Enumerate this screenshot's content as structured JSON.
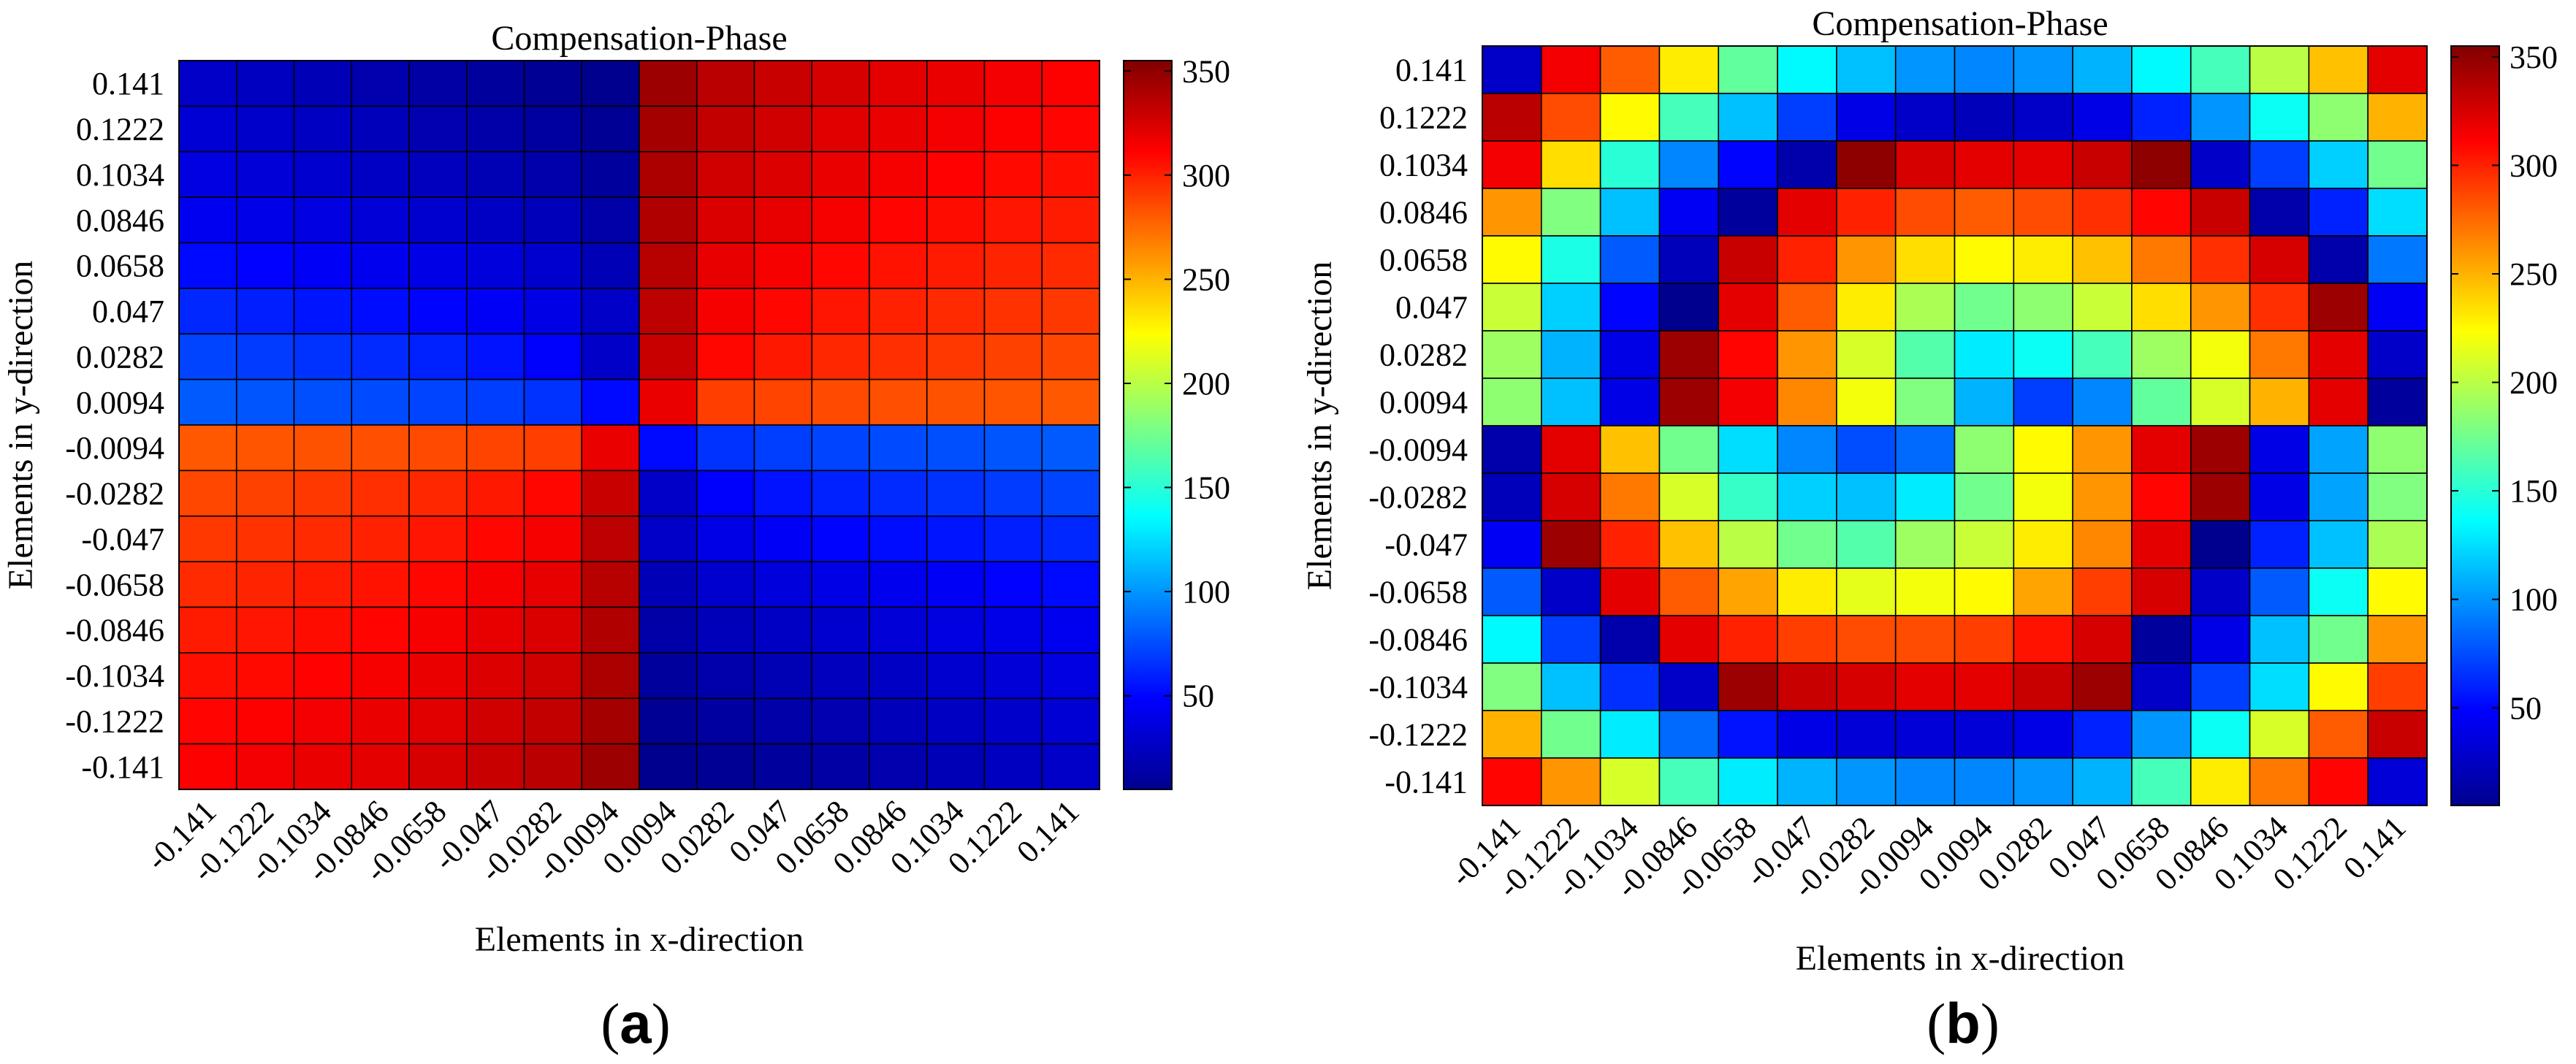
{
  "panels": [
    {
      "label": "(a)",
      "label_letter": "a"
    },
    {
      "label": "(b)",
      "label_letter": "b"
    }
  ],
  "chart_data": [
    {
      "type": "heatmap",
      "panel": "(a)",
      "title": "Compensation-Phase",
      "xlabel": "Elements in x-direction",
      "ylabel": "Elements in y-direction",
      "x_ticks": [
        "-0.141",
        "-0.1222",
        "-0.1034",
        "-0.0846",
        "-0.0658",
        "-0.047",
        "-0.0282",
        "-0.0094",
        "0.0094",
        "0.0282",
        "0.047",
        "0.0658",
        "0.0846",
        "0.1034",
        "0.1222",
        "0.141"
      ],
      "y_ticks": [
        "0.141",
        "0.1222",
        "0.1034",
        "0.0846",
        "0.0658",
        "0.047",
        "0.0282",
        "0.0094",
        "-0.0094",
        "-0.0282",
        "-0.047",
        "-0.0658",
        "-0.0846",
        "-0.1034",
        "-0.1222",
        "-0.141"
      ],
      "colorbar": {
        "min": 5,
        "max": 355,
        "ticks": [
          50,
          100,
          150,
          200,
          250,
          300,
          350
        ],
        "colormap": "jet"
      },
      "values": [
        [
          30,
          27,
          24,
          21,
          18,
          15,
          12,
          10,
          345,
          335,
          330,
          325,
          320,
          318,
          315,
          312
        ],
        [
          34,
          31,
          28,
          25,
          22,
          19,
          16,
          12,
          342,
          332,
          327,
          322,
          318,
          315,
          312,
          310
        ],
        [
          38,
          35,
          32,
          29,
          26,
          23,
          20,
          15,
          340,
          328,
          323,
          318,
          314,
          311,
          308,
          306
        ],
        [
          44,
          41,
          38,
          35,
          32,
          29,
          25,
          19,
          338,
          324,
          319,
          314,
          310,
          307,
          304,
          302
        ],
        [
          52,
          49,
          46,
          43,
          40,
          37,
          32,
          24,
          336,
          319,
          314,
          309,
          305,
          302,
          299,
          297
        ],
        [
          62,
          59,
          56,
          53,
          50,
          46,
          40,
          30,
          334,
          314,
          309,
          304,
          300,
          297,
          294,
          292
        ],
        [
          72,
          69,
          66,
          63,
          60,
          55,
          48,
          30,
          330,
          309,
          303,
          298,
          295,
          292,
          289,
          287
        ],
        [
          80,
          78,
          76,
          74,
          72,
          70,
          66,
          52,
          318,
          290,
          288,
          286,
          284,
          283,
          282,
          281
        ],
        [
          281,
          282,
          283,
          284,
          286,
          288,
          290,
          318,
          52,
          66,
          70,
          72,
          74,
          76,
          78,
          80
        ],
        [
          287,
          289,
          292,
          295,
          298,
          303,
          309,
          330,
          30,
          48,
          55,
          60,
          63,
          66,
          69,
          72
        ],
        [
          292,
          294,
          297,
          300,
          304,
          309,
          314,
          334,
          30,
          40,
          46,
          50,
          53,
          56,
          59,
          62
        ],
        [
          297,
          299,
          302,
          305,
          309,
          314,
          319,
          336,
          24,
          32,
          37,
          40,
          43,
          46,
          49,
          52
        ],
        [
          302,
          304,
          307,
          310,
          314,
          319,
          324,
          338,
          19,
          25,
          29,
          32,
          35,
          38,
          41,
          44
        ],
        [
          306,
          308,
          311,
          314,
          318,
          323,
          328,
          340,
          15,
          20,
          23,
          26,
          29,
          32,
          35,
          38
        ],
        [
          310,
          312,
          315,
          318,
          322,
          327,
          332,
          342,
          12,
          16,
          19,
          22,
          25,
          28,
          31,
          34
        ],
        [
          312,
          315,
          318,
          320,
          325,
          330,
          335,
          345,
          10,
          12,
          15,
          18,
          21,
          24,
          27,
          30
        ]
      ]
    },
    {
      "type": "heatmap",
      "panel": "(b)",
      "title": "Compensation-Phase",
      "xlabel": "Elements in x-direction",
      "ylabel": "Elements in y-direction",
      "x_ticks": [
        "-0.141",
        "-0.1222",
        "-0.1034",
        "-0.0846",
        "-0.0658",
        "-0.047",
        "-0.0282",
        "-0.0094",
        "0.0094",
        "0.0282",
        "0.047",
        "0.0658",
        "0.0846",
        "0.1034",
        "0.1222",
        "0.141"
      ],
      "y_ticks": [
        "0.141",
        "0.1222",
        "0.1034",
        "0.0846",
        "0.0658",
        "0.047",
        "0.0282",
        "0.0094",
        "-0.0094",
        "-0.0282",
        "-0.047",
        "-0.0658",
        "-0.0846",
        "-0.1034",
        "-0.1222",
        "-0.141"
      ],
      "colorbar": {
        "min": 5,
        "max": 355,
        "ticks": [
          50,
          100,
          150,
          200,
          250,
          300,
          350
        ],
        "colormap": "jet"
      },
      "values": [
        [
          30,
          315,
          280,
          230,
          170,
          135,
          115,
          100,
          95,
          100,
          110,
          135,
          160,
          200,
          245,
          320
        ],
        [
          335,
          285,
          225,
          160,
          115,
          70,
          40,
          30,
          25,
          30,
          40,
          60,
          100,
          140,
          185,
          250
        ],
        [
          315,
          235,
          150,
          95,
          50,
          20,
          350,
          325,
          320,
          320,
          330,
          350,
          30,
          70,
          120,
          175
        ],
        [
          260,
          180,
          115,
          45,
          15,
          320,
          300,
          285,
          280,
          285,
          295,
          310,
          330,
          20,
          60,
          125
        ],
        [
          225,
          145,
          80,
          25,
          330,
          300,
          260,
          235,
          225,
          230,
          245,
          270,
          295,
          325,
          20,
          90
        ],
        [
          205,
          120,
          50,
          10,
          320,
          280,
          230,
          195,
          175,
          185,
          205,
          235,
          260,
          295,
          345,
          45
        ],
        [
          190,
          110,
          40,
          345,
          310,
          260,
          210,
          165,
          130,
          140,
          160,
          190,
          220,
          270,
          320,
          30
        ],
        [
          185,
          115,
          40,
          345,
          315,
          265,
          220,
          180,
          110,
          70,
          95,
          170,
          210,
          250,
          320,
          15
        ],
        [
          20,
          320,
          245,
          175,
          125,
          95,
          75,
          85,
          185,
          225,
          260,
          320,
          345,
          40,
          105,
          185
        ],
        [
          25,
          325,
          270,
          210,
          155,
          120,
          115,
          130,
          175,
          220,
          260,
          310,
          345,
          40,
          105,
          180
        ],
        [
          45,
          345,
          300,
          245,
          200,
          175,
          165,
          190,
          205,
          230,
          265,
          320,
          10,
          60,
          115,
          195
        ],
        [
          80,
          30,
          320,
          280,
          255,
          230,
          215,
          220,
          225,
          255,
          290,
          325,
          30,
          80,
          140,
          225
        ],
        [
          135,
          70,
          20,
          320,
          300,
          290,
          285,
          285,
          290,
          305,
          325,
          15,
          40,
          115,
          175,
          260
        ],
        [
          180,
          115,
          65,
          30,
          345,
          330,
          325,
          320,
          320,
          330,
          345,
          30,
          70,
          125,
          225,
          290
        ],
        [
          250,
          175,
          130,
          85,
          55,
          40,
          35,
          35,
          35,
          40,
          60,
          100,
          140,
          210,
          280,
          330
        ],
        [
          310,
          260,
          210,
          160,
          130,
          110,
          100,
          95,
          95,
          100,
          110,
          160,
          230,
          270,
          310,
          35
        ]
      ]
    }
  ]
}
